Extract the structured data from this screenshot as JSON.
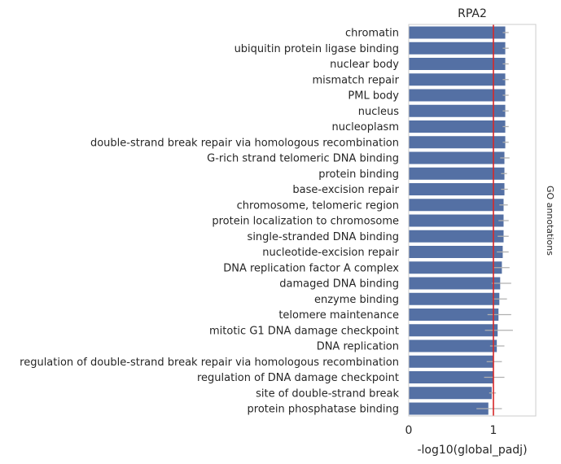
{
  "chart_data": {
    "type": "bar",
    "orientation": "horizontal",
    "title": "RPA2",
    "xlabel": "-log10(global_padj)",
    "ylabel": "",
    "side_label": "GO annotations",
    "xlim": [
      0,
      1.5
    ],
    "xticks": [
      0,
      1
    ],
    "threshold": 1.0,
    "bar_color": "#5470a4",
    "threshold_color": "#d62728",
    "errorbar_color": "#b0b0b0",
    "frame_color": "#cccccc",
    "categories": [
      "chromatin",
      "ubiquitin protein ligase binding",
      "nuclear body",
      "mismatch repair",
      "PML body",
      "nucleus",
      "nucleoplasm",
      "double-strand break repair via homologous recombination",
      "G-rich strand telomeric DNA binding",
      "protein binding",
      "base-excision repair",
      "chromosome, telomeric region",
      "protein localization to chromosome",
      "single-stranded DNA binding",
      "nucleotide-excision repair",
      "DNA replication factor A complex",
      "damaged DNA binding",
      "enzyme binding",
      "telomere maintenance",
      "mitotic G1 DNA damage checkpoint",
      "DNA replication",
      "regulation of double-strand break repair via homologous recombination",
      "regulation of DNA damage checkpoint",
      "site of double-strand break",
      "protein phosphatase binding"
    ],
    "values": [
      1.14,
      1.14,
      1.14,
      1.14,
      1.14,
      1.14,
      1.14,
      1.14,
      1.13,
      1.13,
      1.13,
      1.12,
      1.12,
      1.12,
      1.11,
      1.1,
      1.08,
      1.07,
      1.06,
      1.05,
      1.04,
      1.0,
      1.0,
      0.98,
      0.94
    ],
    "errors": [
      [
        1.11,
        1.18
      ],
      [
        1.11,
        1.18
      ],
      [
        1.11,
        1.18
      ],
      [
        1.11,
        1.18
      ],
      [
        1.11,
        1.18
      ],
      [
        1.11,
        1.18
      ],
      [
        1.11,
        1.18
      ],
      [
        1.11,
        1.18
      ],
      [
        1.08,
        1.19
      ],
      [
        1.09,
        1.16
      ],
      [
        1.09,
        1.17
      ],
      [
        1.07,
        1.17
      ],
      [
        1.06,
        1.18
      ],
      [
        1.05,
        1.18
      ],
      [
        1.04,
        1.18
      ],
      [
        1.0,
        1.19
      ],
      [
        0.98,
        1.21
      ],
      [
        0.99,
        1.16
      ],
      [
        0.93,
        1.21
      ],
      [
        0.9,
        1.23
      ],
      [
        0.96,
        1.13
      ],
      [
        0.92,
        1.1
      ],
      [
        0.89,
        1.13
      ],
      [
        0.95,
        1.03
      ],
      [
        0.8,
        1.1
      ]
    ]
  }
}
